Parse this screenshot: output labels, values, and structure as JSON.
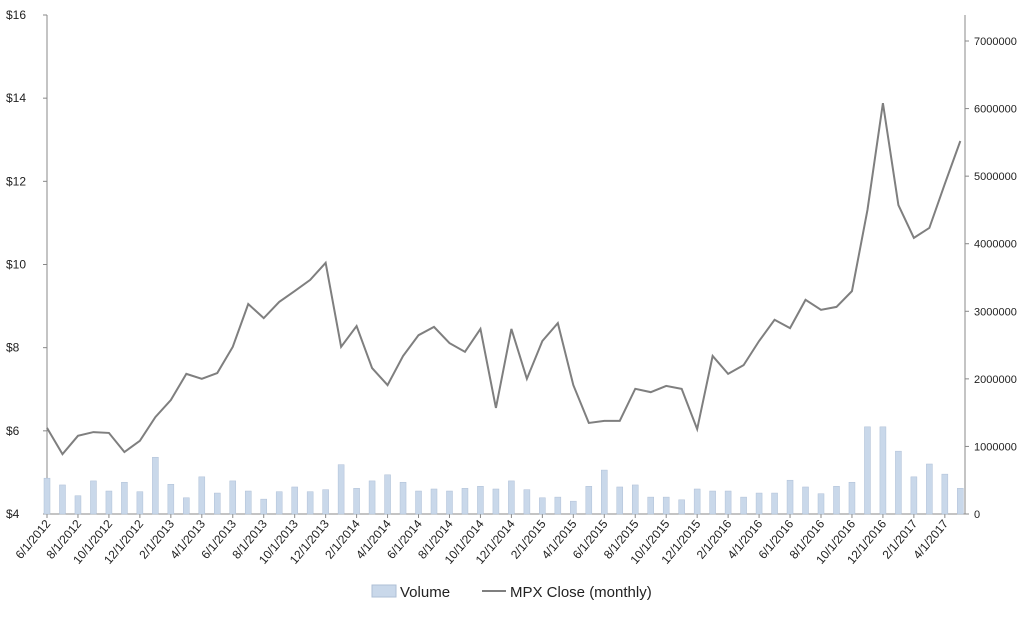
{
  "chart_data": {
    "type": "bar_line",
    "categories": [
      "6/1/2012",
      null,
      "8/1/2012",
      null,
      "10/1/2012",
      null,
      "12/1/2012",
      null,
      "2/1/2013",
      null,
      "4/1/2013",
      null,
      "6/1/2013",
      null,
      "8/1/2013",
      null,
      "10/1/2013",
      null,
      "12/1/2013",
      null,
      "2/1/2014",
      null,
      "4/1/2014",
      null,
      "6/1/2014",
      null,
      "8/1/2014",
      null,
      "10/1/2014",
      null,
      "12/1/2014",
      null,
      "2/1/2015",
      null,
      "4/1/2015",
      null,
      "6/1/2015",
      null,
      "8/1/2015",
      null,
      "10/1/2015",
      null,
      "12/1/2015",
      null,
      "2/1/2016",
      null,
      "4/1/2016",
      null,
      "6/1/2016",
      null,
      "8/1/2016",
      null,
      "10/1/2016",
      null,
      "12/1/2016",
      null,
      "2/1/2017",
      null,
      "4/1/2017",
      null
    ],
    "series": [
      {
        "name": "Volume",
        "type": "bar",
        "axis": "y2",
        "color": "#c9d8ea",
        "values": [
          530000,
          430000,
          270000,
          490000,
          340000,
          470000,
          330000,
          840000,
          440000,
          240000,
          550000,
          310000,
          490000,
          340000,
          220000,
          330000,
          400000,
          330000,
          360000,
          730000,
          380000,
          490000,
          580000,
          470000,
          340000,
          370000,
          340000,
          380000,
          410000,
          370000,
          490000,
          360000,
          240000,
          250000,
          190000,
          410000,
          650000,
          400000,
          430000,
          250000,
          250000,
          210000,
          370000,
          340000,
          340000,
          250000,
          310000,
          310000,
          500000,
          400000,
          300000,
          410000,
          470000,
          1290000,
          1290000,
          930000,
          550000,
          740000,
          590000,
          380000
        ]
      },
      {
        "name": "MPX Close (monthly)",
        "type": "line",
        "axis": "y",
        "color": "#7f7f7f",
        "values": [
          6.07,
          5.44,
          5.88,
          5.97,
          5.95,
          5.49,
          5.76,
          6.33,
          6.74,
          7.37,
          7.25,
          7.39,
          8.02,
          9.05,
          8.71,
          9.1,
          9.36,
          9.63,
          10.04,
          8.02,
          8.52,
          7.51,
          7.1,
          7.8,
          8.3,
          8.5,
          8.11,
          7.9,
          8.45,
          6.55,
          8.45,
          7.25,
          8.16,
          8.59,
          7.1,
          6.19,
          6.24,
          6.24,
          7.01,
          6.93,
          7.08,
          7.01,
          6.04,
          7.8,
          7.37,
          7.58,
          8.16,
          8.67,
          8.47,
          9.15,
          8.91,
          8.98,
          9.36,
          11.31,
          13.88,
          11.43,
          10.64,
          10.88,
          11.94,
          12.97
        ]
      }
    ],
    "ylim": [
      4,
      16
    ],
    "yticks": [
      {
        "value": 4,
        "label": "$4"
      },
      {
        "value": 6,
        "label": "$6"
      },
      {
        "value": 8,
        "label": "$8"
      },
      {
        "value": 10,
        "label": "$10"
      },
      {
        "value": 12,
        "label": "$12"
      },
      {
        "value": 14,
        "label": "$14"
      },
      {
        "value": 16,
        "label": "$16"
      }
    ],
    "y2lim": [
      0,
      7385000
    ],
    "y2ticks": [
      0,
      1000000,
      2000000,
      3000000,
      4000000,
      5000000,
      6000000,
      7000000
    ],
    "grid": false,
    "legend": "bottom"
  }
}
